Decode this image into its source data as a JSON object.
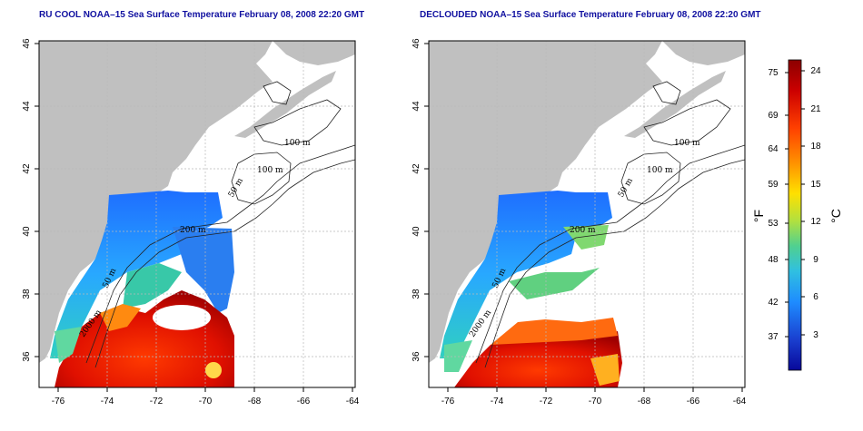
{
  "left_map": {
    "title": "RU COOL NOAA–15 Sea Surface Temperature February 08, 2008 22:20 GMT"
  },
  "right_map": {
    "title": "DECLOUDED NOAA–15 Sea Surface Temperature February 08, 2008 22:20 GMT"
  },
  "axes": {
    "lat_ticks": [
      "36",
      "38",
      "40",
      "42",
      "44",
      "46"
    ],
    "lon_ticks": [
      "-76",
      "-74",
      "-72",
      "-70",
      "-68",
      "-66",
      "-64"
    ]
  },
  "contour_labels": [
    "100 m",
    "100 m",
    "50 m",
    "200 m",
    "50 m",
    "2000 m"
  ],
  "colorbar": {
    "fahrenheit_ticks": [
      "75",
      "69",
      "64",
      "59",
      "53",
      "48",
      "42",
      "37"
    ],
    "celsius_ticks": [
      "24",
      "21",
      "18",
      "15",
      "12",
      "9",
      "6",
      "3"
    ],
    "unit_f": "°F",
    "unit_c": "°C",
    "colors": [
      "#8b0000",
      "#d40000",
      "#ff4500",
      "#ff8c00",
      "#ffd700",
      "#c8e632",
      "#60d080",
      "#30c8d0",
      "#1e90ff",
      "#1e5adc",
      "#0a0aa0"
    ]
  },
  "colors": {
    "land": "#c0c0c0",
    "grid": "#b8b8b8"
  }
}
